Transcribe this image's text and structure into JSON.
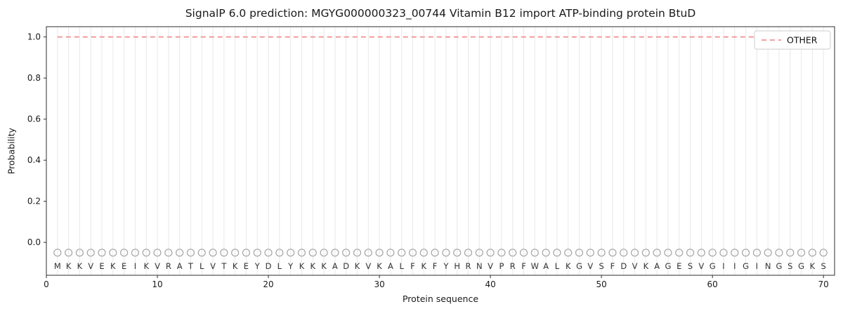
{
  "chart_data": {
    "type": "line",
    "title": "SignalP 6.0 prediction: MGYG000000323_00744 Vitamin B12 import ATP-binding protein BtuD",
    "xlabel": "Protein sequence",
    "ylabel": "Probability",
    "xlim": [
      0,
      71
    ],
    "ylim": [
      -0.16,
      1.05
    ],
    "xticks": [
      0,
      10,
      20,
      30,
      40,
      50,
      60,
      70
    ],
    "yticks": [
      0.0,
      0.2,
      0.4,
      0.6,
      0.8,
      1.0
    ],
    "axis_color": "#2e2e2e",
    "tick_label_color": "#1a1a1a",
    "grid": {
      "vertical_line_per_residue": true,
      "color": "#e8e8e8"
    },
    "sequence": "MKKVEKEIKVRATLVTKEYDLYKKKADKVKALFKFYHRNVPRFWALKGVSFDVKAGESVGIIGINGSGKS",
    "series": [
      {
        "name": "OTHER",
        "color": "#f08080",
        "style": "dashed",
        "x_start": 1,
        "x_end": 70,
        "constant_value": 1.0
      }
    ],
    "residue_markers": {
      "shape": "open-circle",
      "y": -0.05,
      "color": "#a6a6a6"
    },
    "letters": {
      "y": -0.115,
      "color": "#333333"
    },
    "legend": {
      "position": "top-right",
      "border_color": "#cccccc",
      "background": "#ffffff",
      "entries": [
        {
          "label": "OTHER",
          "color": "#f08080",
          "dash": true
        }
      ]
    }
  }
}
